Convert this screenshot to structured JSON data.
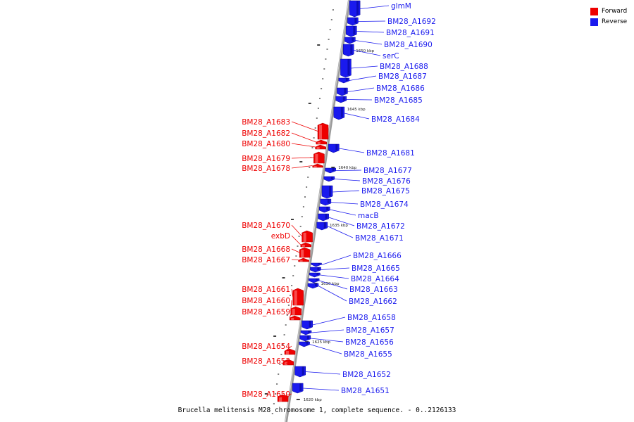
{
  "colors": {
    "forward": "#ee0000",
    "reverse": "#1a1aee",
    "backbone": "#9a9a9a",
    "tick": "#000000"
  },
  "legend": [
    {
      "label": "Forward",
      "strand": "forward"
    },
    {
      "label": "Reverse",
      "strand": "reverse"
    }
  ],
  "caption": "Brucella melitensis M28 chromosome 1, complete sequence. - 0..2126133",
  "scale_ticks": [
    "1650 kbp",
    "1645 kbp",
    "1640 kbp",
    "1635 kbp",
    "1630 kbp",
    "1625 kbp",
    "1620 kbp"
  ],
  "genes_forward": [
    "BM28_A1683",
    "BM28_A1682",
    "BM28_A1680",
    "BM28_A1679",
    "BM28_A1678",
    "BM28_A1670",
    "exbD",
    "BM28_A1668",
    "BM28_A1667",
    "BM28_A1661",
    "BM28_A1660",
    "BM28_A1659",
    "BM28_A1654",
    "BM28_A1653",
    "BM28_A1650"
  ],
  "genes_reverse": [
    "glmM",
    "BM28_A1692",
    "BM28_A1691",
    "BM28_A1690",
    "serC",
    "BM28_A1688",
    "BM28_A1687",
    "BM28_A1686",
    "BM28_A1685",
    "BM28_A1684",
    "BM28_A1681",
    "BM28_A1677",
    "BM28_A1676",
    "BM28_A1675",
    "BM28_A1674",
    "macB",
    "BM28_A1672",
    "BM28_A1671",
    "BM28_A1666",
    "BM28_A1665",
    "BM28_A1664",
    "BM28_A1663",
    "BM28_A1662",
    "BM28_A1658",
    "BM28_A1657",
    "BM28_A1656",
    "BM28_A1655",
    "BM28_A1652",
    "BM28_A1651"
  ]
}
